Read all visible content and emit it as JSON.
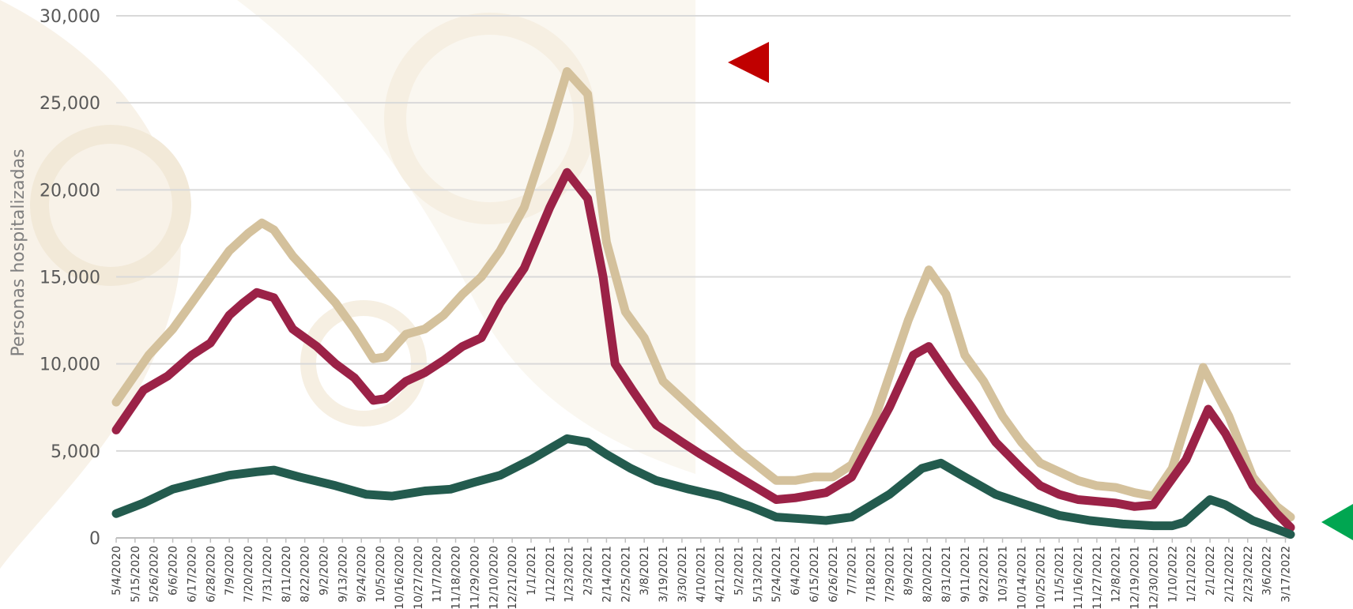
{
  "chart_data": {
    "type": "line",
    "ylabel": "Personas hospitalizadas",
    "xlabel": "",
    "ylim": [
      0,
      30000
    ],
    "y_ticks": [
      0,
      5000,
      10000,
      15000,
      20000,
      25000,
      30000
    ],
    "y_tick_labels": [
      "0",
      "5,000",
      "10,000",
      "15,000",
      "20,000",
      "25,000",
      "30,000"
    ],
    "x_tick_labels": [
      "5/4/2020",
      "5/15/2020",
      "5/26/2020",
      "6/6/2020",
      "6/17/2020",
      "6/28/2020",
      "7/9/2020",
      "7/20/2020",
      "7/31/2020",
      "8/11/2020",
      "8/22/2020",
      "9/2/2020",
      "9/13/2020",
      "9/24/2020",
      "10/5/2020",
      "10/16/2020",
      "10/27/2020",
      "11/7/2020",
      "11/18/2020",
      "11/29/2020",
      "12/10/2020",
      "12/21/2020",
      "1/1/2021",
      "1/12/2021",
      "1/23/2021",
      "2/3/2021",
      "2/14/2021",
      "2/25/2021",
      "3/8/2021",
      "3/19/2021",
      "3/30/2021",
      "4/10/2021",
      "4/21/2021",
      "5/2/2021",
      "5/13/2021",
      "5/24/2021",
      "6/4/2021",
      "6/15/2021",
      "6/26/2021",
      "7/7/2021",
      "7/18/2021",
      "7/29/2021",
      "8/9/2021",
      "8/20/2021",
      "8/31/2021",
      "9/11/2021",
      "9/22/2021",
      "10/3/2021",
      "10/14/2021",
      "10/25/2021",
      "11/5/2021",
      "11/16/2021",
      "11/27/2021",
      "12/8/2021",
      "12/19/2021",
      "12/30/2021",
      "1/10/2022",
      "1/21/2022",
      "2/1/2022",
      "2/12/2022",
      "2/23/2022",
      "3/6/2022",
      "3/17/2022"
    ],
    "x_start": "5/4/2020",
    "x_end": "3/20/2022",
    "grid": true,
    "legend": "none",
    "series": [
      {
        "color": "#d4c19c",
        "values": [
          7800,
          10500,
          12000,
          13500,
          15000,
          16500,
          17500,
          18100,
          17700,
          16200,
          14700,
          13500,
          12000,
          10300,
          10400,
          11700,
          12000,
          12800,
          14000,
          15000,
          16500,
          19000,
          23500,
          26800,
          25500,
          17000,
          13000,
          11500,
          9000,
          8000,
          7000,
          5000,
          3300,
          3300,
          3500,
          3500,
          4200,
          7000,
          12500,
          15400,
          14000,
          10500,
          9000,
          7000,
          5500,
          4300,
          3300,
          3000,
          2900,
          2600,
          2400,
          4000,
          9800,
          7000,
          3500,
          1800,
          1200
        ],
        "dates": [
          "5/4/2020",
          "5/23/2020",
          "6/6/2020",
          "6/17/2020",
          "6/28/2020",
          "7/9/2020",
          "7/20/2020",
          "7/28/2020",
          "8/4/2020",
          "8/15/2020",
          "8/29/2020",
          "9/9/2020",
          "9/20/2020",
          "10/1/2020",
          "10/8/2020",
          "10/20/2020",
          "10/31/2020",
          "11/11/2020",
          "11/22/2020",
          "12/3/2020",
          "12/14/2020",
          "12/28/2020",
          "1/12/2021",
          "1/22/2021",
          "2/3/2021",
          "2/14/2021",
          "2/25/2021",
          "3/8/2021",
          "3/19/2021",
          "3/30/2021",
          "4/10/2021",
          "5/2/2021",
          "5/24/2021",
          "6/4/2021",
          "6/15/2021",
          "6/26/2021",
          "7/7/2021",
          "7/21/2021",
          "8/9/2021",
          "8/21/2021",
          "8/31/2021",
          "9/11/2021",
          "9/22/2021",
          "10/3/2021",
          "10/14/2021",
          "10/25/2021",
          "11/16/2021",
          "11/27/2021",
          "12/8/2021",
          "12/19/2021",
          "12/30/2021",
          "1/10/2022",
          "1/28/2022",
          "2/12/2022",
          "2/26/2022",
          "3/12/2022",
          "3/20/2022"
        ]
      },
      {
        "color": "#9b2247",
        "values": [
          6200,
          8500,
          9300,
          10500,
          11200,
          12800,
          13500,
          14100,
          13800,
          12000,
          11000,
          10000,
          9200,
          7900,
          8000,
          9000,
          9500,
          10200,
          11000,
          11500,
          13500,
          15500,
          19000,
          21000,
          19500,
          15000,
          10000,
          8500,
          6500,
          5500,
          4800,
          3500,
          2200,
          2300,
          2600,
          3500,
          7500,
          10500,
          11000,
          9000,
          7500,
          5500,
          4000,
          3000,
          2500,
          2200,
          2000,
          1800,
          1900,
          4500,
          7400,
          6000,
          3000,
          1400,
          600
        ],
        "dates": [
          "5/4/2020",
          "5/20/2020",
          "6/3/2020",
          "6/17/2020",
          "6/28/2020",
          "7/9/2020",
          "7/17/2020",
          "7/25/2020",
          "8/4/2020",
          "8/15/2020",
          "8/29/2020",
          "9/9/2020",
          "9/20/2020",
          "10/1/2020",
          "10/8/2020",
          "10/20/2020",
          "10/31/2020",
          "11/11/2020",
          "11/22/2020",
          "12/3/2020",
          "12/14/2020",
          "12/28/2020",
          "1/12/2021",
          "1/22/2021",
          "2/3/2021",
          "2/12/2021",
          "2/19/2021",
          "3/1/2021",
          "3/15/2021",
          "3/30/2021",
          "4/10/2021",
          "5/2/2021",
          "5/24/2021",
          "6/4/2021",
          "6/22/2021",
          "7/7/2021",
          "7/29/2021",
          "8/12/2021",
          "8/21/2021",
          "9/4/2021",
          "9/15/2021",
          "9/29/2021",
          "10/14/2021",
          "10/25/2021",
          "11/5/2021",
          "11/16/2021",
          "12/8/2021",
          "12/19/2021",
          "12/30/2021",
          "1/18/2022",
          "1/31/2022",
          "2/10/2022",
          "2/26/2022",
          "3/12/2022",
          "3/20/2022"
        ]
      },
      {
        "color": "#235b4e",
        "values": [
          1400,
          2000,
          2800,
          3200,
          3600,
          3800,
          3900,
          3500,
          3000,
          2500,
          2400,
          2700,
          2800,
          3200,
          3600,
          4500,
          5700,
          5500,
          4800,
          4000,
          3300,
          2800,
          2400,
          1800,
          1200,
          1100,
          1000,
          1200,
          2500,
          4000,
          4300,
          3500,
          2500,
          2000,
          1300,
          1000,
          800,
          700,
          700,
          900,
          2200,
          1900,
          1000,
          500,
          200
        ],
        "dates": [
          "5/4/2020",
          "5/20/2020",
          "6/6/2020",
          "6/22/2020",
          "7/9/2020",
          "7/25/2020",
          "8/4/2020",
          "8/19/2020",
          "9/9/2020",
          "9/27/2020",
          "10/12/2020",
          "10/31/2020",
          "11/15/2020",
          "11/29/2020",
          "12/14/2020",
          "1/1/2021",
          "1/22/2021",
          "2/3/2021",
          "2/14/2021",
          "2/28/2021",
          "3/15/2021",
          "4/3/2021",
          "4/21/2021",
          "5/9/2021",
          "5/24/2021",
          "6/8/2021",
          "6/22/2021",
          "7/7/2021",
          "7/29/2021",
          "8/17/2021",
          "8/28/2021",
          "9/11/2021",
          "9/29/2021",
          "10/14/2021",
          "11/5/2021",
          "11/23/2021",
          "12/12/2021",
          "12/30/2021",
          "1/10/2022",
          "1/17/2022",
          "2/1/2022",
          "2/10/2022",
          "2/26/2022",
          "3/12/2022",
          "3/20/2022"
        ]
      }
    ]
  },
  "indicators": {
    "red_arrow_color": "#c00000",
    "green_arrow_color": "#00a651"
  }
}
